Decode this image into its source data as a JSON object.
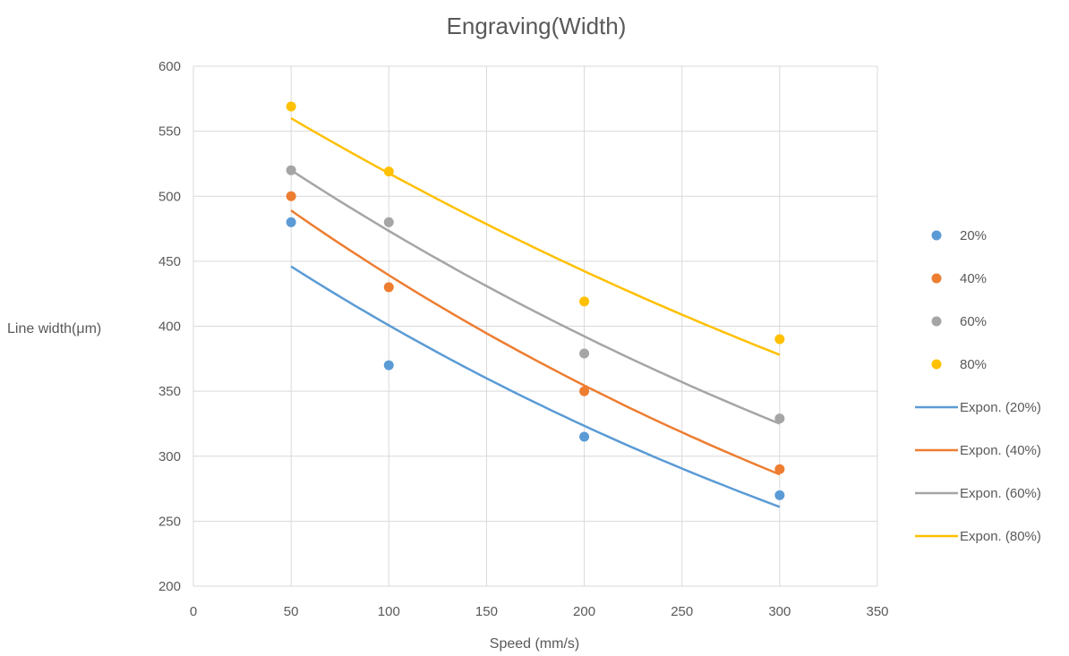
{
  "chart_data": {
    "type": "scatter",
    "title": "Engraving(Width)",
    "xlabel": "Speed (mm/s)",
    "ylabel": "Line width(μm)",
    "xlim": [
      0,
      350
    ],
    "ylim": [
      200,
      600
    ],
    "xticks": [
      0,
      50,
      100,
      150,
      200,
      250,
      300,
      350
    ],
    "yticks": [
      200,
      250,
      300,
      350,
      400,
      450,
      500,
      550,
      600
    ],
    "grid": true,
    "legend_position": "right",
    "x": [
      50,
      100,
      200,
      300
    ],
    "series": [
      {
        "name": "20%",
        "color": "#5B9BD5",
        "values": [
          480,
          370,
          315,
          270
        ]
      },
      {
        "name": "40%",
        "color": "#ED7D31",
        "values": [
          500,
          430,
          350,
          290
        ]
      },
      {
        "name": "60%",
        "color": "#A5A5A5",
        "values": [
          520,
          480,
          379,
          329
        ]
      },
      {
        "name": "80%",
        "color": "#FFC000",
        "values": [
          569,
          519,
          419,
          390
        ]
      }
    ],
    "trendlines": [
      {
        "name": "Expon. (20%)",
        "color": "#5B9BD5",
        "type": "exponential",
        "x_range": [
          50,
          300
        ],
        "y_range": [
          446,
          261
        ]
      },
      {
        "name": "Expon. (40%)",
        "color": "#ED7D31",
        "type": "exponential",
        "x_range": [
          50,
          300
        ],
        "y_range": [
          489,
          286
        ]
      },
      {
        "name": "Expon. (60%)",
        "color": "#A5A5A5",
        "type": "exponential",
        "x_range": [
          50,
          300
        ],
        "y_range": [
          520,
          325
        ]
      },
      {
        "name": "Expon. (80%)",
        "color": "#FFC000",
        "type": "exponential",
        "x_range": [
          50,
          300
        ],
        "y_range": [
          560,
          378
        ]
      }
    ]
  }
}
